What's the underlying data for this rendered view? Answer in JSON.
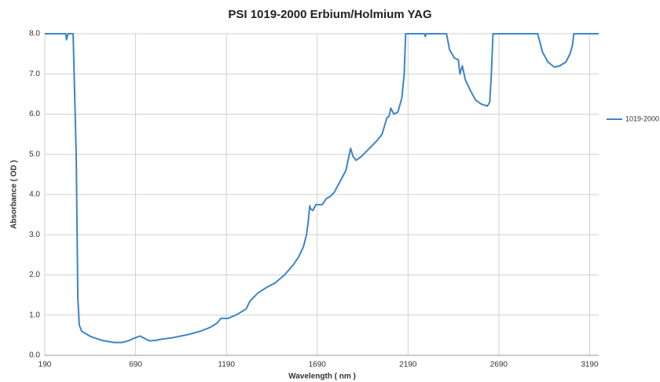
{
  "chart_data": {
    "type": "line",
    "title": "PSI  1019-2000 Erbium/Holmium YAG",
    "xlabel": "Wavelength ( nm )",
    "ylabel": "Absorbance ( OD )",
    "xlim": [
      190,
      3240
    ],
    "ylim": [
      0,
      8
    ],
    "xticks": [
      190,
      690,
      1190,
      1690,
      2190,
      2690,
      3190
    ],
    "yticks": [
      {
        "value": 0,
        "label": "0.0"
      },
      {
        "value": 1,
        "label": "1.0"
      },
      {
        "value": 2,
        "label": "2.0"
      },
      {
        "value": 3,
        "label": "3.0"
      },
      {
        "value": 4,
        "label": "4.0"
      },
      {
        "value": 5,
        "label": "5.0"
      },
      {
        "value": 6,
        "label": "6.0"
      },
      {
        "value": 7,
        "label": "7.0"
      },
      {
        "value": 8,
        "label": "8.0"
      }
    ],
    "grid": true,
    "legend": "right",
    "x": [
      190,
      305,
      310,
      318,
      346,
      363,
      372,
      380,
      393,
      441,
      506,
      571,
      614,
      649,
      679,
      714,
      740,
      766,
      800,
      830,
      896,
      982,
      1047,
      1103,
      1138,
      1160,
      1199,
      1242,
      1298,
      1320,
      1363,
      1415,
      1458,
      1510,
      1558,
      1588,
      1614,
      1631,
      1640,
      1649,
      1653,
      1666,
      1683,
      1718,
      1740,
      1761,
      1783,
      1813,
      1848,
      1874,
      1887,
      1904,
      1934,
      1978,
      2021,
      2047,
      2073,
      2086,
      2095,
      2112,
      2134,
      2156,
      2169,
      2177,
      2280,
      2285,
      2290,
      2402,
      2419,
      2445,
      2467,
      2476,
      2489,
      2506,
      2532,
      2562,
      2593,
      2627,
      2640,
      2649,
      2658,
      2904,
      2930,
      2960,
      2995,
      3025,
      3060,
      3082,
      3095,
      3103,
      3240
    ],
    "series": [
      {
        "name": "1019-2000",
        "color": "#3d85c6",
        "values": [
          8.0,
          8.0,
          7.85,
          8.0,
          8.0,
          5.0,
          1.42,
          0.75,
          0.6,
          0.47,
          0.37,
          0.32,
          0.32,
          0.36,
          0.42,
          0.48,
          0.42,
          0.36,
          0.37,
          0.4,
          0.44,
          0.52,
          0.6,
          0.7,
          0.8,
          0.92,
          0.92,
          1.0,
          1.15,
          1.35,
          1.55,
          1.7,
          1.8,
          2.0,
          2.25,
          2.45,
          2.7,
          3.0,
          3.3,
          3.72,
          3.65,
          3.6,
          3.75,
          3.75,
          3.9,
          3.95,
          4.05,
          4.3,
          4.6,
          5.15,
          4.95,
          4.85,
          4.95,
          5.15,
          5.35,
          5.5,
          5.9,
          5.95,
          6.15,
          6.0,
          6.05,
          6.4,
          7.0,
          8.0,
          8.0,
          7.93,
          8.0,
          8.0,
          7.6,
          7.4,
          7.35,
          7.0,
          7.2,
          6.85,
          6.6,
          6.35,
          6.25,
          6.2,
          6.3,
          7.0,
          8.0,
          8.0,
          7.55,
          7.3,
          7.17,
          7.2,
          7.3,
          7.5,
          7.7,
          8.0,
          8.0
        ]
      }
    ]
  }
}
